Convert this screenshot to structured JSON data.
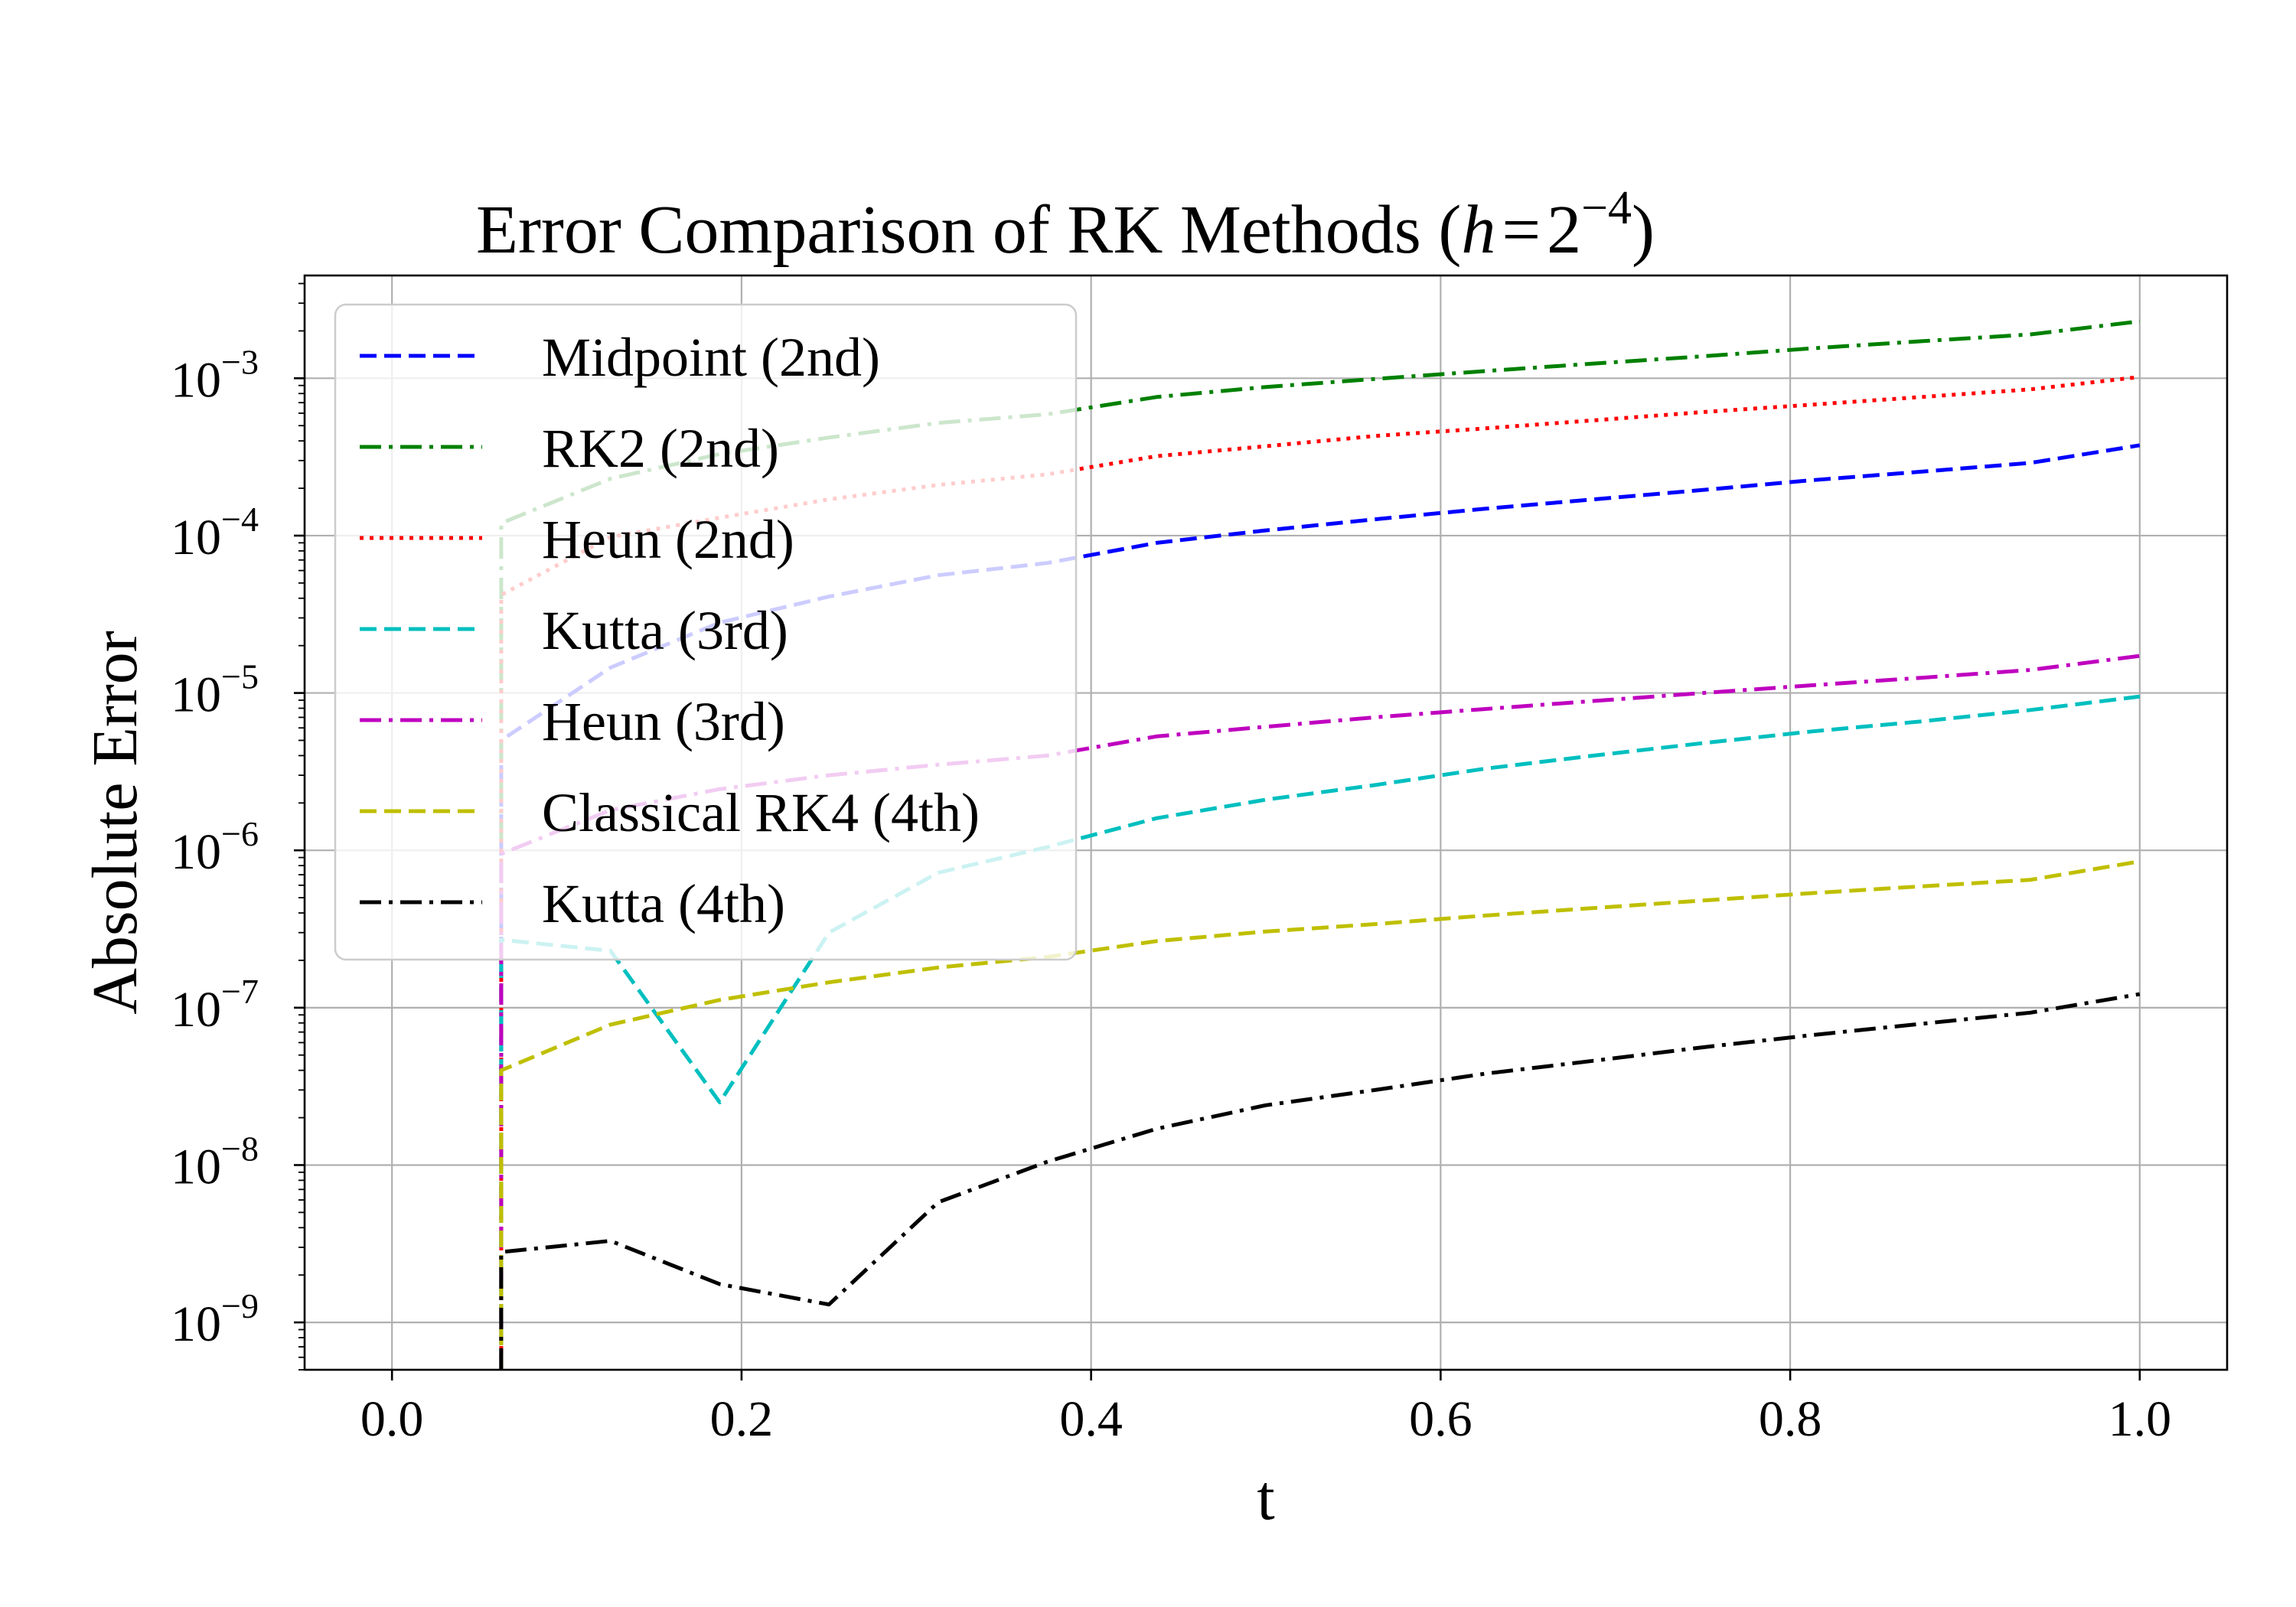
{
  "chart_data": {
    "type": "line",
    "title": {
      "prefix": "Error Comparison of RK Methods (",
      "var": "h",
      "eq": "=",
      "base": "2",
      "exponent": "−4",
      "suffix": ")"
    },
    "xlabel": "t",
    "ylabel": "Absolute Error",
    "xlim": [
      -0.05,
      1.05
    ],
    "ylim": [
      5e-10,
      0.0045
    ],
    "yscale": "log",
    "grid": true,
    "legend_position": "upper-left",
    "x_ticks": [
      "0.0",
      "0.2",
      "0.4",
      "0.6",
      "0.8",
      "1.0"
    ],
    "y_ticks": [
      {
        "base": "10",
        "exp": "−3",
        "value": 0.001
      },
      {
        "base": "10",
        "exp": "−4",
        "value": 0.0001
      },
      {
        "base": "10",
        "exp": "−5",
        "value": 1e-05
      },
      {
        "base": "10",
        "exp": "−6",
        "value": 1e-06
      },
      {
        "base": "10",
        "exp": "−7",
        "value": 1e-07
      },
      {
        "base": "10",
        "exp": "−8",
        "value": 1e-08
      },
      {
        "base": "10",
        "exp": "−9",
        "value": 1e-09
      }
    ],
    "x": [
      0.0625,
      0.125,
      0.1875,
      0.25,
      0.3125,
      0.375,
      0.4375,
      0.5,
      0.5625,
      0.625,
      0.6875,
      0.75,
      0.8125,
      0.875,
      0.9375,
      1.0
    ],
    "series": [
      {
        "name": "Midpoint (2nd)",
        "color": "#0000ff",
        "dash": "dashed",
        "values": [
          5e-06,
          1.45e-05,
          2.8e-05,
          4.1e-05,
          5.6e-05,
          6.7e-05,
          9e-05,
          0.000108,
          0.000127,
          0.000148,
          0.00017,
          0.000195,
          0.000225,
          0.000255,
          0.00029,
          0.000375
        ]
      },
      {
        "name": "RK2 (2nd)",
        "color": "#008000",
        "dash": "dashdot",
        "values": [
          0.00012,
          0.00023,
          0.00033,
          0.00042,
          0.00052,
          0.00059,
          0.00076,
          0.00088,
          0.00099,
          0.00111,
          0.00124,
          0.00138,
          0.00155,
          0.00172,
          0.0019,
          0.0023
        ]
      },
      {
        "name": "Heun (2nd)",
        "color": "#ff0000",
        "dash": "dotted",
        "values": [
          4.2e-05,
          9.8e-05,
          0.00013,
          0.00017,
          0.00021,
          0.000245,
          0.00032,
          0.00037,
          0.00043,
          0.00048,
          0.00054,
          0.00061,
          0.00068,
          0.00076,
          0.00085,
          0.00102
        ]
      },
      {
        "name": "Kutta (3rd)",
        "color": "#00bfbf",
        "dash": "dashed",
        "values": [
          2.7e-07,
          2.3e-07,
          2.5e-08,
          3e-07,
          7.2e-07,
          1.05e-06,
          1.6e-06,
          2.1e-06,
          2.6e-06,
          3.3e-06,
          4e-06,
          4.8e-06,
          5.7e-06,
          6.6e-06,
          7.8e-06,
          9.5e-06
        ]
      },
      {
        "name": "Heun (3rd)",
        "color": "#bf00bf",
        "dash": "dashdot",
        "values": [
          9.5e-07,
          1.8e-06,
          2.45e-06,
          3e-06,
          3.5e-06,
          4e-06,
          5.3e-06,
          6.1e-06,
          7e-06,
          7.9e-06,
          8.9e-06,
          1e-05,
          1.12e-05,
          1.25e-05,
          1.4e-05,
          1.72e-05
        ]
      },
      {
        "name": "Classical RK4 (4th)",
        "color": "#bfbf00",
        "dash": "dashed",
        "values": [
          4e-08,
          7.8e-08,
          1.12e-07,
          1.45e-07,
          1.8e-07,
          2.1e-07,
          2.65e-07,
          3.05e-07,
          3.4e-07,
          3.85e-07,
          4.3e-07,
          4.8e-07,
          5.35e-07,
          5.9e-07,
          6.5e-07,
          8.5e-07
        ]
      },
      {
        "name": "Kutta (4th)",
        "color": "#000000",
        "dash": "dashdot",
        "values": [
          2.8e-09,
          3.3e-09,
          1.75e-09,
          1.3e-09,
          5.8e-09,
          1.05e-08,
          1.7e-08,
          2.4e-08,
          3e-08,
          3.8e-08,
          4.6e-08,
          5.6e-08,
          6.7e-08,
          7.9e-08,
          9.3e-08,
          1.22e-07
        ]
      }
    ]
  }
}
